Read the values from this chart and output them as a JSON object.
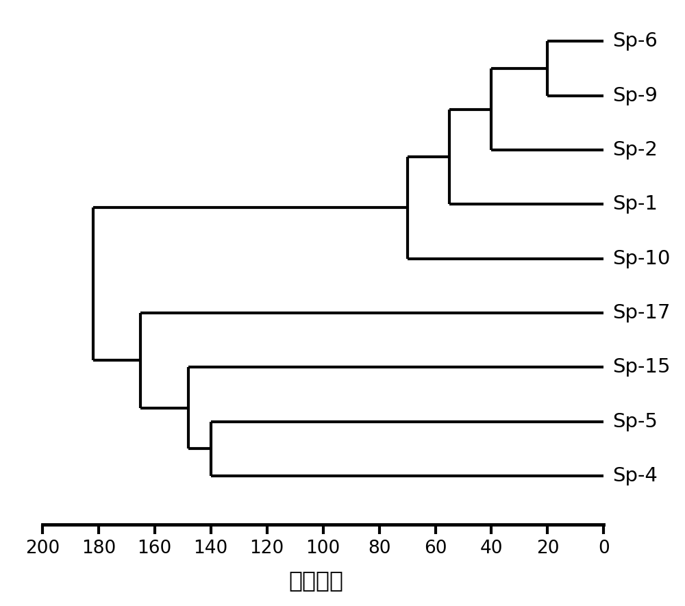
{
  "leaves": [
    "Sp-6",
    "Sp-9",
    "Sp-2",
    "Sp-1",
    "Sp-10",
    "Sp-17",
    "Sp-15",
    "Sp-5",
    "Sp-4"
  ],
  "xlabel": "光密度値",
  "xticks": [
    200,
    180,
    160,
    140,
    120,
    100,
    80,
    60,
    40,
    20,
    0
  ],
  "line_width": 3.0,
  "line_color": "#000000",
  "bg_color": "#ffffff",
  "label_fontsize": 21,
  "tick_fontsize": 19,
  "xlabel_fontsize": 24,
  "leaf_y": {
    "Sp-6": 0,
    "Sp-9": 1,
    "Sp-2": 2,
    "Sp-1": 3,
    "Sp-10": 4,
    "Sp-17": 5,
    "Sp-15": 6,
    "Sp-5": 7,
    "Sp-4": 8
  },
  "merge_x1": 20,
  "merge_x2": 40,
  "merge_x3": 55,
  "merge_x4": 70,
  "merge_x5": 140,
  "merge_x6": 148,
  "merge_x7": 165,
  "merge_x8": 182,
  "xlim_left": 210,
  "xlim_right": -5,
  "ylim_bottom": 8.9,
  "ylim_top": -0.5
}
